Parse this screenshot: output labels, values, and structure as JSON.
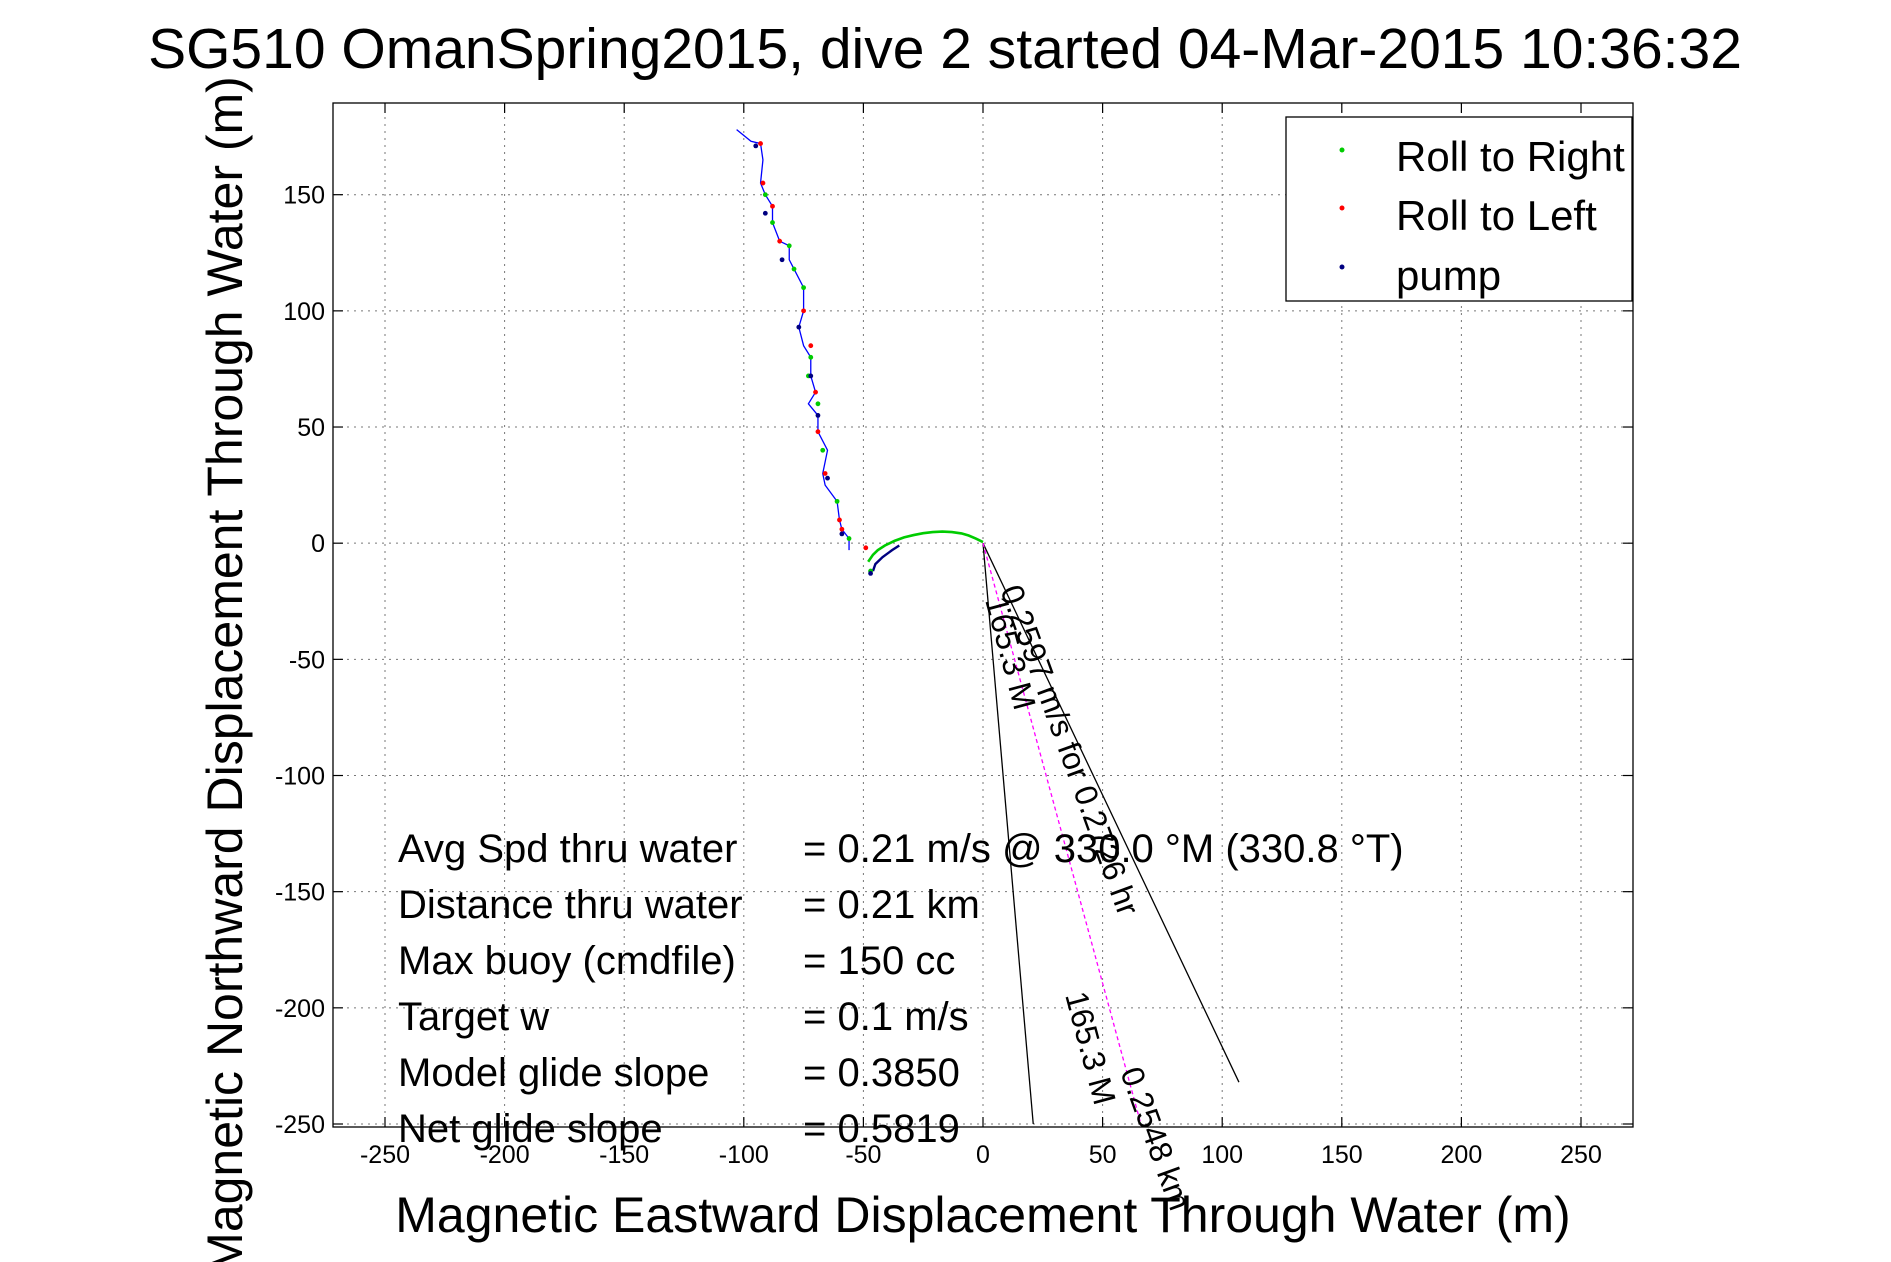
{
  "chart_data": {
    "type": "line",
    "title": "SG510 OmanSpring2015, dive 2 started 04-Mar-2015 10:36:32",
    "xlabel": "Magnetic Eastward Displacement Through Water (m)",
    "ylabel": "Magnetic Northward Displacement Through Water (m)",
    "xlim": [
      -250,
      250
    ],
    "ylim": [
      -250,
      180
    ],
    "xticks": [
      -250,
      -200,
      -150,
      -100,
      -50,
      0,
      50,
      100,
      150,
      200,
      250
    ],
    "yticks": [
      -250,
      -200,
      -150,
      -100,
      -50,
      0,
      50,
      100,
      150
    ],
    "grid": true,
    "legend": {
      "placement": "top-right",
      "entries": [
        {
          "label": "Roll to Right",
          "color": "#00cc00"
        },
        {
          "label": "Roll to Left",
          "color": "#ff0000"
        },
        {
          "label": "pump",
          "color": "#000080"
        }
      ]
    },
    "series": [
      {
        "color": "#0000ff",
        "x": [
          -103,
          -97,
          -93,
          -92,
          -93,
          -91,
          -88,
          -88,
          -85,
          -81,
          -81,
          -79,
          -75,
          -75,
          -77,
          -75,
          -72,
          -72,
          -70,
          -73,
          -69,
          -69,
          -65,
          -67,
          -66,
          -61,
          -60,
          -59,
          -56,
          -56
        ],
        "y": [
          178,
          173,
          172,
          165,
          155,
          150,
          145,
          138,
          130,
          128,
          122,
          118,
          110,
          100,
          93,
          85,
          80,
          72,
          65,
          60,
          55,
          48,
          40,
          30,
          25,
          18,
          10,
          6,
          2,
          -3
        ]
      },
      {
        "color": "#00cc00",
        "x": [
          -48,
          -46,
          -44,
          -41,
          -37,
          -33,
          -29,
          -25,
          -21,
          -17,
          -13,
          -9,
          -6,
          -3,
          0
        ],
        "y": [
          -8,
          -5,
          -3,
          -1,
          1,
          2.5,
          3.5,
          4.3,
          4.8,
          5.0,
          4.8,
          4.2,
          3.3,
          2.0,
          0.5
        ]
      },
      {
        "color": "#000080",
        "x": [
          -46,
          -45,
          -42,
          -38,
          -35
        ],
        "y": [
          -12,
          -9,
          -6,
          -3,
          -1
        ]
      },
      {
        "color": "#ff00ff",
        "x": [
          0,
          66
        ],
        "y": [
          0,
          -250
        ]
      }
    ],
    "marker_points": {
      "roll_to_left": {
        "color": "#ff0000",
        "x": [
          -93,
          -92,
          -88,
          -85,
          -75,
          -72,
          -70,
          -69,
          -66,
          -60,
          -59,
          -49
        ],
        "y": [
          172,
          155,
          145,
          130,
          100,
          85,
          65,
          48,
          30,
          10,
          6,
          -2
        ]
      },
      "roll_to_right": {
        "color": "#00cc00",
        "x": [
          -91,
          -88,
          -81,
          -79,
          -75,
          -72,
          -73,
          -69,
          -67,
          -61,
          -56,
          -47
        ],
        "y": [
          150,
          138,
          128,
          118,
          110,
          80,
          72,
          60,
          40,
          18,
          2,
          -12
        ]
      },
      "pump": {
        "color": "#000080",
        "x": [
          -95,
          -91,
          -84,
          -77,
          -72,
          -69,
          -65,
          -59,
          -47
        ],
        "y": [
          171,
          142,
          122,
          93,
          72,
          55,
          28,
          4,
          -13
        ]
      }
    },
    "reference_lines": [
      {
        "color": "#000000",
        "x": [
          0,
          21
        ],
        "y": [
          0,
          -250
        ]
      },
      {
        "color": "#000000",
        "x": [
          0,
          107
        ],
        "y": [
          0,
          -232
        ]
      }
    ],
    "rotated_labels": [
      "165.3 M",
      "0.2597 m/s for 0.2726 hr",
      "165.3 M",
      "0.2548 km"
    ],
    "annotations": [
      {
        "label": "Avg Spd thru water",
        "value": "=  0.21 m/s @ 330.0 °M (330.8 °T)"
      },
      {
        "label": "Distance thru water",
        "value": "=  0.21 km"
      },
      {
        "label": "Max buoy (cmdfile)",
        "value": "= 150 cc"
      },
      {
        "label": "Target w",
        "value": "= 0.1 m/s"
      },
      {
        "label": "Model glide slope",
        "value": "= 0.3850"
      },
      {
        "label": "Net glide slope",
        "value": "= 0.5819"
      }
    ]
  }
}
